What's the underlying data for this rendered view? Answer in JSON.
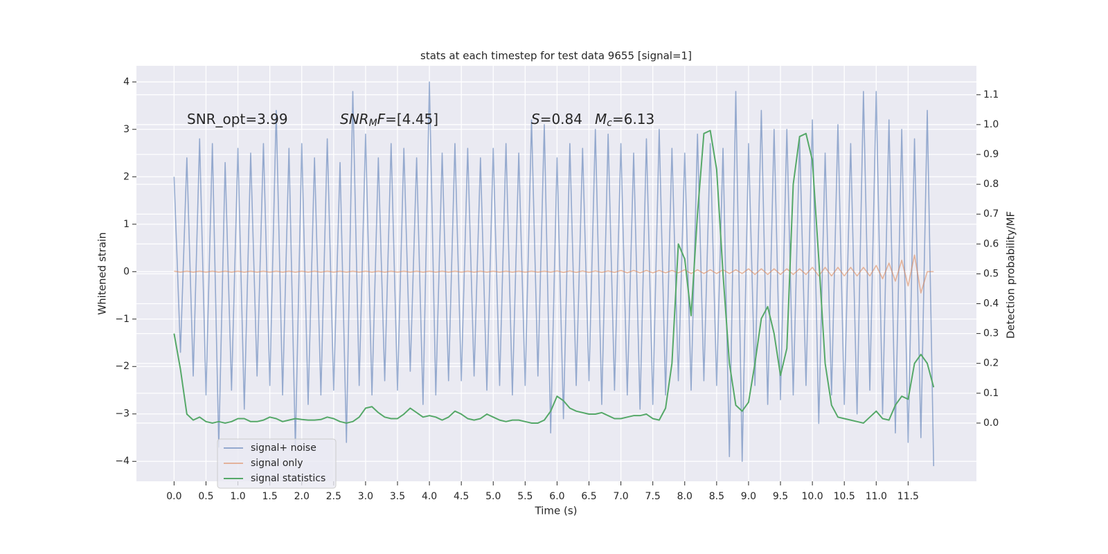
{
  "chart_data": {
    "type": "line",
    "title": "stats at each timestep for test data 9655 [signal=1]",
    "xlabel": "Time (s)",
    "ylabel": "Whitened strain",
    "y2label": "Detection probability/MF",
    "annotations": [
      [
        "SNR_opt=3.99"
      ],
      [
        "SNR",
        "M",
        "F",
        "=[4.45]"
      ],
      [
        "S",
        "=0.84",
        "M",
        "c",
        "=6.13"
      ]
    ],
    "grid": true,
    "legend": "lower left",
    "xlim": [
      -0.59,
      12.57
    ],
    "ylim": [
      -4.42,
      4.34
    ],
    "y2lim": [
      -0.195,
      1.197
    ],
    "xticks": [
      {
        "value": 0,
        "label": "0.0"
      },
      0.5,
      {
        "value": 1,
        "label": "1.0"
      },
      1.5,
      {
        "value": 2,
        "label": "2.0"
      },
      2.5,
      {
        "value": 3,
        "label": "3.0"
      },
      3.5,
      {
        "value": 4,
        "label": "4.0"
      },
      4.5,
      {
        "value": 5,
        "label": "5.0"
      },
      5.5,
      {
        "value": 6,
        "label": "6.0"
      },
      6.5,
      {
        "value": 7,
        "label": "7.0"
      },
      7.5,
      {
        "value": 8,
        "label": "8.0"
      },
      8.5,
      {
        "value": 9,
        "label": "9.0"
      },
      9.5,
      {
        "value": 10,
        "label": "10.0"
      },
      10.5,
      {
        "value": 11,
        "label": "11.0"
      },
      11.5
    ],
    "yticks": [
      {
        "value": -4,
        "label": "−4"
      },
      {
        "value": -3,
        "label": "−3"
      },
      {
        "value": -2,
        "label": "−2"
      },
      {
        "value": -1,
        "label": "−1"
      },
      0,
      1,
      2,
      3,
      4
    ],
    "y2ticks": [
      {
        "value": 0,
        "label": "0.0"
      },
      0.1,
      0.2,
      0.3,
      0.4,
      0.5,
      0.6,
      0.7,
      0.8,
      0.9,
      {
        "value": 1,
        "label": "1.0"
      },
      1.1
    ],
    "x": [
      0,
      0.1,
      0.2,
      0.3,
      0.4,
      0.5,
      0.6,
      0.7,
      0.8,
      0.9,
      1,
      1.1,
      1.2,
      1.3,
      1.4,
      1.5,
      1.6,
      1.7,
      1.8,
      1.9,
      2,
      2.1,
      2.2,
      2.3,
      2.4,
      2.5,
      2.6,
      2.7,
      2.8,
      2.9,
      3,
      3.1,
      3.2,
      3.3,
      3.4,
      3.5,
      3.6,
      3.7,
      3.8,
      3.9,
      4,
      4.1,
      4.2,
      4.3,
      4.4,
      4.5,
      4.6,
      4.7,
      4.8,
      4.9,
      5,
      5.1,
      5.2,
      5.3,
      5.4,
      5.5,
      5.6,
      5.7,
      5.8,
      5.9,
      6,
      6.1,
      6.2,
      6.3,
      6.4,
      6.5,
      6.6,
      6.7,
      6.8,
      6.9,
      7,
      7.1,
      7.2,
      7.3,
      7.4,
      7.5,
      7.6,
      7.7,
      7.8,
      7.9,
      8,
      8.1,
      8.2,
      8.3,
      8.4,
      8.5,
      8.6,
      8.7,
      8.8,
      8.9,
      9,
      9.1,
      9.2,
      9.3,
      9.4,
      9.5,
      9.6,
      9.7,
      9.8,
      9.9,
      10,
      10.1,
      10.2,
      10.3,
      10.4,
      10.5,
      10.6,
      10.7,
      10.8,
      10.9,
      11,
      11.1,
      11.2,
      11.3,
      11.4,
      11.5,
      11.6,
      11.7,
      11.8,
      11.9
    ],
    "series": [
      {
        "name": "signal+ noise",
        "color": "#4c72b0",
        "values": [
          2.0,
          -1.7,
          2.4,
          -2.2,
          2.8,
          -2.6,
          2.7,
          -3.7,
          2.3,
          -2.5,
          2.6,
          -2.9,
          2.5,
          -2.2,
          2.7,
          -2.4,
          3.4,
          -2.6,
          2.6,
          -3.7,
          2.7,
          -2.8,
          2.4,
          -2.6,
          2.8,
          -2.5,
          2.3,
          -3.6,
          3.8,
          -2.4,
          2.9,
          -2.6,
          2.4,
          -2.3,
          2.7,
          -2.5,
          2.6,
          -2.1,
          2.4,
          -2.8,
          4.0,
          -2.6,
          2.5,
          -2.3,
          2.7,
          -2.3,
          2.6,
          -2.2,
          2.4,
          -2.5,
          2.6,
          -2.4,
          2.7,
          -2.6,
          2.5,
          -2.4,
          3.2,
          -2.2,
          3.1,
          -3.4,
          2.4,
          -3.1,
          2.7,
          -2.4,
          2.6,
          -2.3,
          3.0,
          -2.8,
          2.9,
          -2.5,
          2.7,
          -2.6,
          2.5,
          -2.9,
          2.8,
          -2.8,
          3.0,
          -2.6,
          2.6,
          -2.3,
          2.5,
          -2.5,
          2.9,
          -2.3,
          2.7,
          -2.4,
          2.6,
          -3.9,
          3.8,
          -4.0,
          2.7,
          -2.4,
          3.4,
          -2.8,
          3.0,
          -2.7,
          3.0,
          -2.6,
          2.8,
          -2.4,
          3.2,
          -3.2,
          2.5,
          -2.6,
          3.1,
          -2.8,
          2.7,
          -3.0,
          3.8,
          -2.5,
          3.8,
          -3.0,
          3.2,
          -3.4,
          3.0,
          -3.6,
          2.8,
          -3.5,
          3.4,
          -4.1
        ]
      },
      {
        "name": "signal only",
        "color": "#dd8452",
        "values": [
          0.01,
          -0.01,
          0.01,
          -0.01,
          0.01,
          -0.01,
          0.01,
          -0.01,
          0.01,
          -0.01,
          0.01,
          -0.01,
          0.01,
          -0.01,
          0.01,
          -0.01,
          0.01,
          -0.01,
          0.01,
          -0.01,
          0.01,
          -0.01,
          0.01,
          -0.01,
          0.01,
          -0.01,
          0.01,
          -0.01,
          0.01,
          -0.01,
          0.01,
          -0.01,
          0.01,
          -0.01,
          0.01,
          -0.01,
          0.01,
          -0.01,
          0.01,
          -0.01,
          0.01,
          -0.01,
          0.01,
          -0.01,
          0.01,
          -0.01,
          0.01,
          -0.01,
          0.01,
          -0.01,
          0.01,
          -0.01,
          0.01,
          -0.01,
          0.01,
          -0.01,
          0.01,
          -0.01,
          0.01,
          -0.01,
          0.015,
          -0.015,
          0.015,
          -0.015,
          0.015,
          -0.015,
          0.015,
          -0.015,
          0.015,
          -0.015,
          0.025,
          -0.025,
          0.025,
          -0.025,
          0.025,
          -0.025,
          0.025,
          -0.025,
          0.025,
          -0.025,
          0.04,
          -0.04,
          0.04,
          -0.04,
          0.04,
          -0.04,
          0.04,
          -0.04,
          0.04,
          -0.04,
          0.06,
          -0.06,
          0.06,
          -0.06,
          0.06,
          -0.06,
          0.06,
          -0.06,
          0.06,
          -0.06,
          0.09,
          -0.09,
          0.09,
          -0.09,
          0.09,
          -0.09,
          0.09,
          -0.09,
          0.09,
          -0.09,
          0.13,
          -0.15,
          0.18,
          -0.2,
          0.24,
          -0.3,
          0.35,
          -0.45,
          0.0,
          0.0
        ]
      },
      {
        "name": "signal statistics",
        "color": "#55a868",
        "axis": "y2",
        "values": [
          0.3,
          0.18,
          0.03,
          0.01,
          0.02,
          0.005,
          0.0,
          0.005,
          0.0,
          0.005,
          0.015,
          0.015,
          0.005,
          0.005,
          0.01,
          0.02,
          0.015,
          0.005,
          0.01,
          0.015,
          0.012,
          0.01,
          0.01,
          0.012,
          0.02,
          0.015,
          0.005,
          0.0,
          0.005,
          0.02,
          0.05,
          0.055,
          0.035,
          0.02,
          0.015,
          0.015,
          0.03,
          0.05,
          0.035,
          0.02,
          0.025,
          0.02,
          0.01,
          0.02,
          0.04,
          0.03,
          0.015,
          0.01,
          0.015,
          0.03,
          0.02,
          0.01,
          0.005,
          0.01,
          0.01,
          0.005,
          0.0,
          0.0,
          0.01,
          0.04,
          0.09,
          0.075,
          0.05,
          0.04,
          0.035,
          0.03,
          0.03,
          0.035,
          0.025,
          0.015,
          0.015,
          0.02,
          0.025,
          0.025,
          0.03,
          0.015,
          0.01,
          0.05,
          0.2,
          0.6,
          0.55,
          0.36,
          0.7,
          0.97,
          0.98,
          0.85,
          0.5,
          0.2,
          0.06,
          0.04,
          0.07,
          0.2,
          0.35,
          0.39,
          0.3,
          0.16,
          0.25,
          0.8,
          0.96,
          0.97,
          0.88,
          0.55,
          0.2,
          0.06,
          0.02,
          0.015,
          0.01,
          0.005,
          0.0,
          0.02,
          0.04,
          0.015,
          0.01,
          0.06,
          0.09,
          0.08,
          0.2,
          0.23,
          0.2,
          0.12
        ]
      }
    ]
  }
}
